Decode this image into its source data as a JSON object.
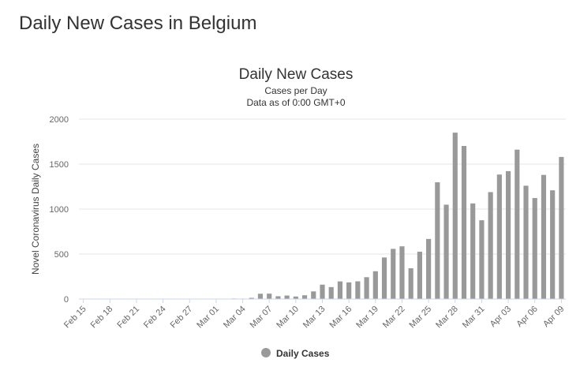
{
  "page": {
    "heading": "Daily New Cases in Belgium"
  },
  "chart_data": {
    "type": "bar",
    "title": "Daily New Cases",
    "subtitle_lines": [
      "Cases per Day",
      "Data as of 0:00 GMT+0"
    ],
    "ylabel": "Novel Coronavirus Daily Cases",
    "xlabel": "",
    "ylim": [
      0,
      2000
    ],
    "yticks": [
      0,
      500,
      1000,
      1500,
      2000
    ],
    "grid": true,
    "legend_position": "bottom-center",
    "bar_color": "#999999",
    "categories": [
      "Feb 15",
      "Feb 16",
      "Feb 17",
      "Feb 18",
      "Feb 19",
      "Feb 20",
      "Feb 21",
      "Feb 22",
      "Feb 23",
      "Feb 24",
      "Feb 25",
      "Feb 26",
      "Feb 27",
      "Feb 28",
      "Feb 29",
      "Mar 01",
      "Mar 02",
      "Mar 03",
      "Mar 04",
      "Mar 05",
      "Mar 06",
      "Mar 07",
      "Mar 08",
      "Mar 09",
      "Mar 10",
      "Mar 11",
      "Mar 12",
      "Mar 13",
      "Mar 14",
      "Mar 15",
      "Mar 16",
      "Mar 17",
      "Mar 18",
      "Mar 19",
      "Mar 20",
      "Mar 21",
      "Mar 22",
      "Mar 23",
      "Mar 24",
      "Mar 25",
      "Mar 26",
      "Mar 27",
      "Mar 28",
      "Mar 29",
      "Mar 30",
      "Mar 31",
      "Apr 01",
      "Apr 02",
      "Apr 03",
      "Apr 04",
      "Apr 05",
      "Apr 06",
      "Apr 07",
      "Apr 08",
      "Apr 09"
    ],
    "tick_labels": [
      "Feb 15",
      "Feb 18",
      "Feb 21",
      "Feb 24",
      "Feb 27",
      "Mar 01",
      "Mar 04",
      "Mar 07",
      "Mar 10",
      "Mar 13",
      "Mar 16",
      "Mar 19",
      "Mar 22",
      "Mar 25",
      "Mar 28",
      "Mar 31",
      "Apr 03",
      "Apr 06",
      "Apr 09"
    ],
    "series": [
      {
        "name": "Daily Cases",
        "values": [
          0,
          0,
          0,
          0,
          0,
          0,
          0,
          0,
          0,
          0,
          0,
          0,
          0,
          0,
          0,
          1,
          0,
          6,
          5,
          13,
          59,
          60,
          31,
          39,
          28,
          42,
          85,
          160,
          133,
          196,
          185,
          197,
          243,
          309,
          462,
          558,
          586,
          342,
          526,
          668,
          1298,
          1049,
          1850,
          1702,
          1063,
          876,
          1189,
          1384,
          1422,
          1661,
          1260,
          1123,
          1380,
          1209,
          1580
        ]
      }
    ]
  }
}
